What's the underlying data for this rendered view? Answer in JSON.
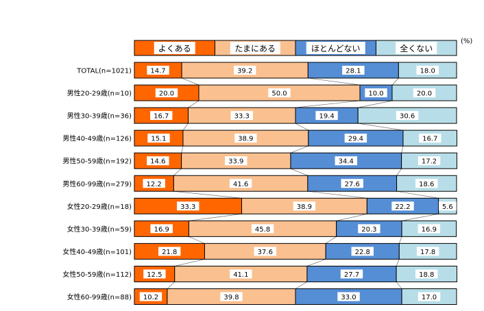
{
  "chart_data": {
    "type": "bar",
    "stacked": true,
    "orientation": "horizontal",
    "percent": true,
    "unit_label": "(%)",
    "xlim": [
      0,
      100
    ],
    "legend_position": "top",
    "series": [
      {
        "name": "よくある",
        "color": "#ff6600",
        "values": [
          14.7,
          20.0,
          16.7,
          15.1,
          14.6,
          12.2,
          33.3,
          16.9,
          21.8,
          12.5,
          10.2
        ]
      },
      {
        "name": "たまにある",
        "color": "#fac090",
        "values": [
          39.2,
          50.0,
          33.3,
          38.9,
          33.9,
          41.6,
          38.9,
          45.8,
          37.6,
          41.1,
          39.8
        ]
      },
      {
        "name": "ほとんどない",
        "color": "#558ed5",
        "values": [
          28.1,
          10.0,
          19.4,
          29.4,
          34.4,
          27.6,
          22.2,
          20.3,
          22.8,
          27.7,
          33.0
        ]
      },
      {
        "name": "全くない",
        "color": "#b7dee8",
        "values": [
          18.0,
          20.0,
          30.6,
          16.7,
          17.2,
          18.6,
          5.6,
          16.9,
          17.8,
          18.8,
          17.0
        ]
      }
    ],
    "categories": [
      "TOTAL(n=1021)",
      "男性20-29歳(n=10)",
      "男性30-39歳(n=36)",
      "男性40-49歳(n=126)",
      "男性50-59歳(n=192)",
      "男性60-99歳(n=279)",
      "女性20-29歳(n=18)",
      "女性30-39歳(n=59)",
      "女性40-49歳(n=101)",
      "女性50-59歳(n=112)",
      "女性60-99歳(n=88)"
    ],
    "value_labels": [
      [
        "14.7",
        "39.2",
        "28.1",
        "18.0"
      ],
      [
        "20.0",
        "50.0",
        "10.0",
        "20.0"
      ],
      [
        "16.7",
        "33.3",
        "19.4",
        "30.6"
      ],
      [
        "15.1",
        "38.9",
        "29.4",
        "16.7"
      ],
      [
        "14.6",
        "33.9",
        "34.4",
        "17.2"
      ],
      [
        "12.2",
        "41.6",
        "27.6",
        "18.6"
      ],
      [
        "33.3",
        "38.9",
        "22.2",
        "5.6"
      ],
      [
        "16.9",
        "45.8",
        "20.3",
        "16.9"
      ],
      [
        "21.8",
        "37.6",
        "22.8",
        "17.8"
      ],
      [
        "12.5",
        "41.1",
        "27.7",
        "18.8"
      ],
      [
        "10.2",
        "39.8",
        "33.0",
        "17.0"
      ]
    ],
    "series_lines": true
  }
}
